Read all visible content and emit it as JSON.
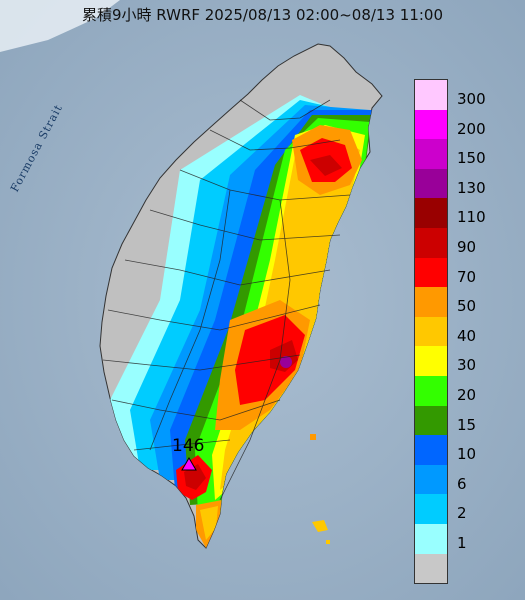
{
  "title": "累積9小時 RWRF 2025/08/13 02:00~08/13 11:00",
  "strait_label": "Formosa Strait",
  "peak": {
    "value": "146",
    "marker_icon": "triangle-marker-icon",
    "marker_color": "#ff00ff"
  },
  "legend": {
    "items": [
      {
        "label": "300",
        "color": "#ffc8ff"
      },
      {
        "label": "200",
        "color": "#ff00ff"
      },
      {
        "label": "150",
        "color": "#cc00cc"
      },
      {
        "label": "130",
        "color": "#990099"
      },
      {
        "label": "110",
        "color": "#990000"
      },
      {
        "label": "90",
        "color": "#cc0000"
      },
      {
        "label": "70",
        "color": "#ff0000"
      },
      {
        "label": "50",
        "color": "#ff9900"
      },
      {
        "label": "40",
        "color": "#ffc800"
      },
      {
        "label": "30",
        "color": "#ffff00"
      },
      {
        "label": "20",
        "color": "#33ff00"
      },
      {
        "label": "15",
        "color": "#339900"
      },
      {
        "label": "10",
        "color": "#0066ff"
      },
      {
        "label": "6",
        "color": "#0099ff"
      },
      {
        "label": "2",
        "color": "#00ccff"
      },
      {
        "label": "1",
        "color": "#99ffff"
      },
      {
        "label": "",
        "color": "#c8c8c8"
      }
    ]
  },
  "colors": {
    "sea": "#9fb4c8",
    "land_no_rain": "#c0c0c0",
    "boundary": "#222222"
  }
}
